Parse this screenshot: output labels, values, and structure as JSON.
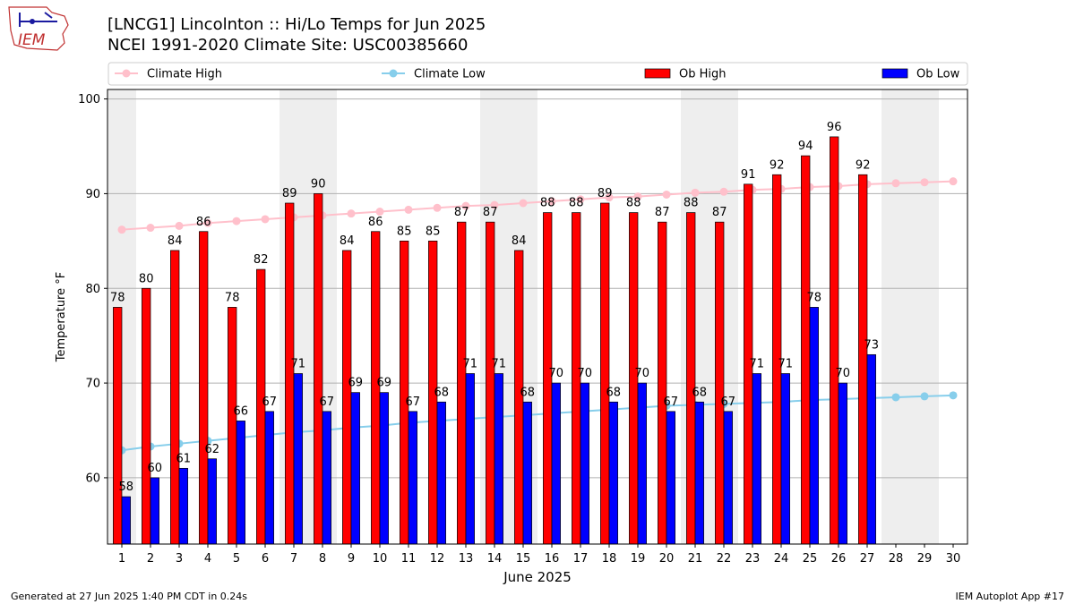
{
  "header": {
    "title_line1": "[LNCG1] Lincolnton :: Hi/Lo Temps for Jun 2025",
    "title_line2": "NCEI 1991-2020 Climate Site: USC00385660",
    "logo_text": "IEM"
  },
  "footer": {
    "generated": "Generated at 27 Jun 2025 1:40 PM CDT in 0.24s",
    "app": "IEM Autoplot App #17"
  },
  "colors": {
    "ob_high": "#ff0000",
    "ob_low": "#0000ff",
    "climate_high": "#ffc0cb",
    "climate_low": "#87ceeb",
    "weekend_band": "#eeeeee",
    "grid": "#b0b0b0"
  },
  "chart_data": {
    "type": "bar",
    "xlabel": "June 2025",
    "ylabel": "Temperature °F",
    "ylim": [
      53,
      101
    ],
    "yticks": [
      60,
      70,
      80,
      90,
      100
    ],
    "grid": true,
    "legend_position": "top",
    "legend": [
      "Climate High",
      "Climate Low",
      "Ob High",
      "Ob Low"
    ],
    "categories": [
      "1",
      "2",
      "3",
      "4",
      "5",
      "6",
      "7",
      "8",
      "9",
      "10",
      "11",
      "12",
      "13",
      "14",
      "15",
      "16",
      "17",
      "18",
      "19",
      "20",
      "21",
      "22",
      "23",
      "24",
      "25",
      "26",
      "27",
      "28",
      "29",
      "30"
    ],
    "weekend_days": [
      1,
      7,
      8,
      14,
      15,
      21,
      22,
      28,
      29
    ],
    "series": [
      {
        "name": "Ob High",
        "kind": "bar",
        "values": [
          78,
          80,
          84,
          86,
          78,
          82,
          89,
          90,
          84,
          86,
          85,
          85,
          87,
          87,
          84,
          88,
          88,
          89,
          88,
          87,
          88,
          87,
          91,
          92,
          94,
          96,
          92,
          null,
          null,
          null
        ]
      },
      {
        "name": "Ob Low",
        "kind": "bar",
        "values": [
          58,
          60,
          61,
          62,
          66,
          67,
          71,
          67,
          69,
          69,
          67,
          68,
          71,
          71,
          68,
          70,
          70,
          68,
          70,
          67,
          68,
          67,
          71,
          71,
          78,
          70,
          73,
          null,
          null,
          null
        ]
      },
      {
        "name": "Climate High",
        "kind": "line",
        "values": [
          86.2,
          86.4,
          86.6,
          86.9,
          87.1,
          87.3,
          87.5,
          87.7,
          87.9,
          88.1,
          88.3,
          88.5,
          88.7,
          88.8,
          89.0,
          89.2,
          89.4,
          89.6,
          89.7,
          89.9,
          90.1,
          90.2,
          90.4,
          90.5,
          90.7,
          90.8,
          91.0,
          91.1,
          91.2,
          91.3
        ]
      },
      {
        "name": "Climate Low",
        "kind": "line",
        "values": [
          62.9,
          63.3,
          63.6,
          63.9,
          64.2,
          64.5,
          64.8,
          65.0,
          65.3,
          65.5,
          65.8,
          66.0,
          66.2,
          66.4,
          66.6,
          66.8,
          67.0,
          67.2,
          67.4,
          67.6,
          67.7,
          67.8,
          67.9,
          68.0,
          68.2,
          68.3,
          68.4,
          68.5,
          68.6,
          68.7
        ]
      }
    ]
  }
}
